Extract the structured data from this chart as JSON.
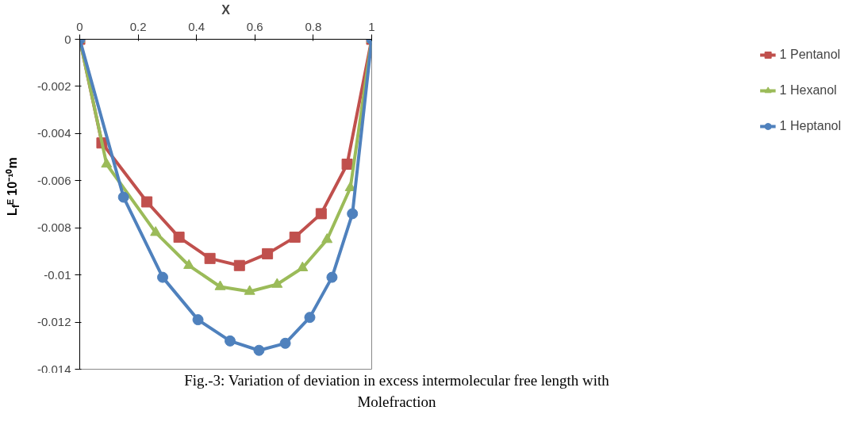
{
  "chart_data": {
    "type": "line",
    "xlabel": "X",
    "ylabel": "L$_{f}$ᴱ 10⁻¹⁰m",
    "xlim": [
      0,
      1
    ],
    "ylim": [
      -0.014,
      0
    ],
    "xticks": [
      0,
      0.2,
      0.4,
      0.6,
      0.8,
      1
    ],
    "yticks": [
      0,
      -0.002,
      -0.004,
      -0.006,
      -0.008,
      -0.01,
      -0.012,
      -0.014
    ],
    "grid": false,
    "legend": "right",
    "line_style": "solid",
    "series": [
      {
        "name": "1 Pentanol",
        "color": "#c0504d",
        "marker": "square",
        "x": [
          0,
          0.076,
          0.23,
          0.34,
          0.446,
          0.547,
          0.643,
          0.737,
          0.827,
          0.916,
          1
        ],
        "values": [
          0,
          -0.0044,
          -0.0069,
          -0.0084,
          -0.0093,
          -0.0096,
          -0.0091,
          -0.0084,
          -0.0074,
          -0.0053,
          0
        ]
      },
      {
        "name": "1 Hexanol",
        "color": "#9bbb59",
        "marker": "triangle",
        "x": [
          0,
          0.092,
          0.26,
          0.374,
          0.481,
          0.582,
          0.676,
          0.763,
          0.847,
          0.927,
          1
        ],
        "values": [
          0,
          -0.0053,
          -0.0082,
          -0.0096,
          -0.0105,
          -0.0107,
          -0.0104,
          -0.0097,
          -0.0085,
          -0.0063,
          0
        ]
      },
      {
        "name": "1 Heptanol",
        "color": "#4f81bd",
        "marker": "circle",
        "x": [
          0,
          0.15,
          0.284,
          0.405,
          0.515,
          0.614,
          0.704,
          0.788,
          0.864,
          0.934,
          1
        ],
        "values": [
          0,
          -0.0067,
          -0.0101,
          -0.0119,
          -0.0128,
          -0.0132,
          -0.0129,
          -0.0118,
          -0.0101,
          -0.0074,
          0
        ]
      }
    ],
    "annotations": [
      "Fig.-3: Variation of deviation in excess intermolecular free length with Molefraction"
    ]
  }
}
